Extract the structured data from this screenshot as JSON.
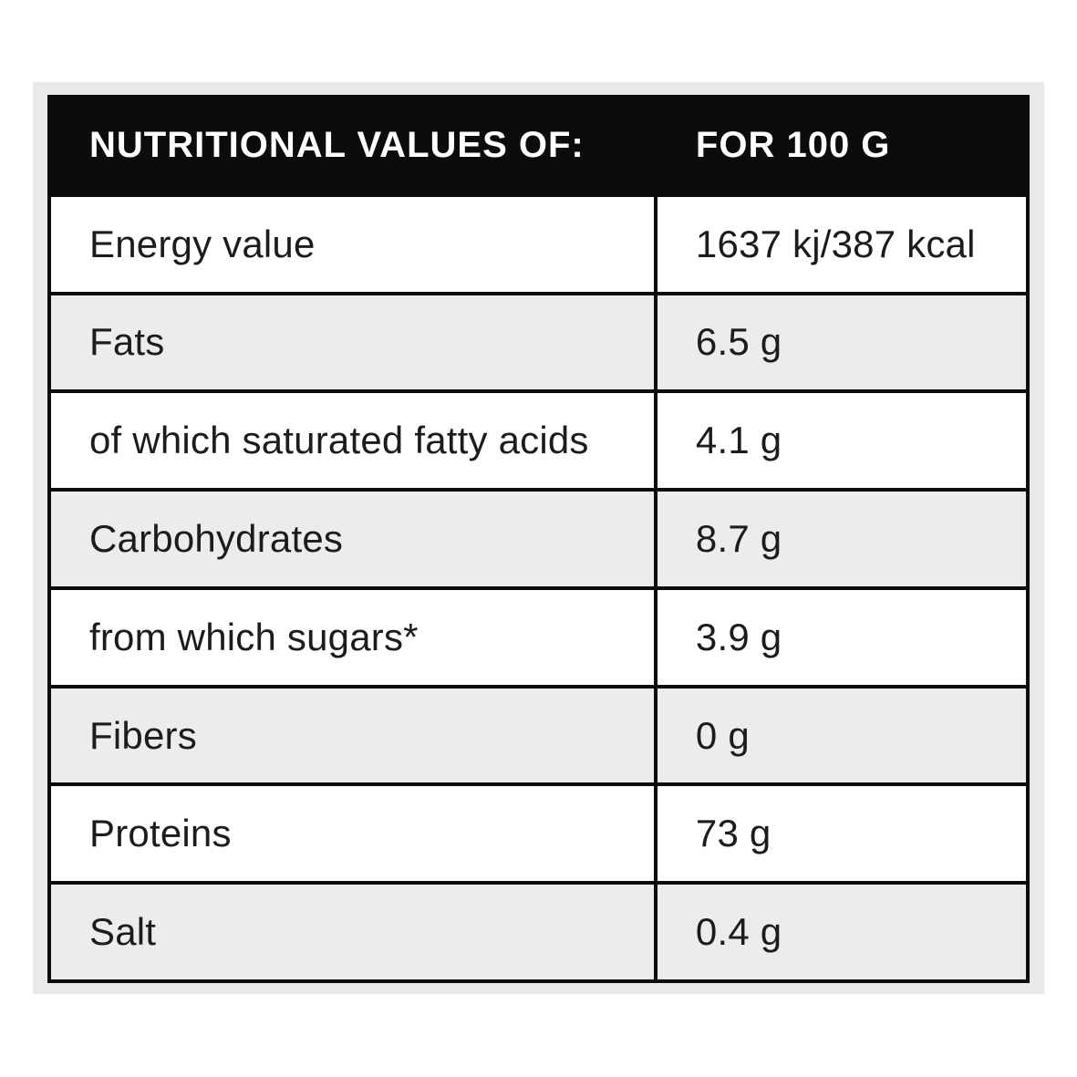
{
  "table": {
    "header": {
      "left": "NUTRITIONAL VALUES OF:",
      "right": "FOR 100 G"
    },
    "rows": [
      {
        "label": "Energy value",
        "value": "1637 kj/387 kcal",
        "shaded": false
      },
      {
        "label": "Fats",
        "value": "6.5 g",
        "shaded": true
      },
      {
        "label": "of which saturated fatty acids",
        "value": "4.1 g",
        "shaded": false
      },
      {
        "label": "Carbohydrates",
        "value": "8.7 g",
        "shaded": true
      },
      {
        "label": "from which sugars*",
        "value": "3.9 g",
        "shaded": false
      },
      {
        "label": "Fibers",
        "value": "0 g",
        "shaded": true
      },
      {
        "label": "Proteins",
        "value": "73 g",
        "shaded": false
      },
      {
        "label": "Salt",
        "value": "0.4 g",
        "shaded": true
      }
    ],
    "colors": {
      "header_bg": "#0c0c0c",
      "header_text": "#ffffff",
      "border": "#0c0c0c",
      "row_bg": "#ffffff",
      "row_shaded_bg": "#ececec",
      "row_text": "#1c1c1c",
      "frame_bg": "#e9e9e9",
      "page_bg": "#ffffff"
    }
  }
}
